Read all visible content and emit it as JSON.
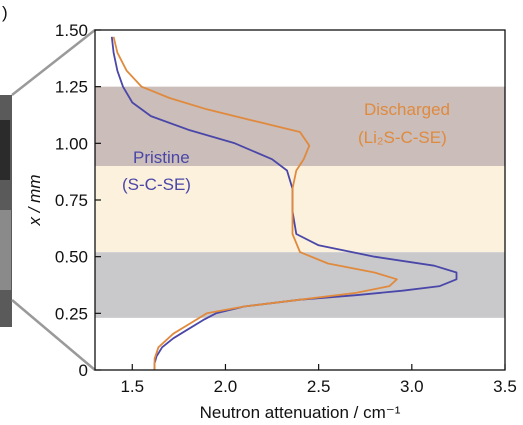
{
  "panel_mark": ")",
  "chart_data": {
    "type": "line",
    "xlabel": "Neutron attenuation / cm⁻¹",
    "ylabel": "x / mm",
    "xlim": [
      1.3,
      3.5
    ],
    "ylim": [
      0,
      1.5
    ],
    "x_ticks": [
      "1.5",
      "2.0",
      "2.5",
      "3.0",
      "3.5"
    ],
    "y_ticks": [
      "0",
      "0.25",
      "0.50",
      "0.75",
      "1.00",
      "1.25",
      "1.50"
    ],
    "regions": [
      {
        "ymin": 0.23,
        "ymax": 0.52,
        "color": "#c9c9cc"
      },
      {
        "ymin": 0.52,
        "ymax": 0.9,
        "color": "#fbf1dc"
      },
      {
        "ymin": 0.9,
        "ymax": 1.25,
        "color": "#cabdba"
      }
    ],
    "series": [
      {
        "name": "Pristine",
        "sublabel": "(S-C-SE)",
        "color": "#4a47a8",
        "points": [
          [
            1.62,
            0.0
          ],
          [
            1.62,
            0.03
          ],
          [
            1.63,
            0.06
          ],
          [
            1.66,
            0.1
          ],
          [
            1.72,
            0.14
          ],
          [
            1.8,
            0.18
          ],
          [
            1.88,
            0.22
          ],
          [
            1.95,
            0.25
          ],
          [
            2.1,
            0.28
          ],
          [
            2.4,
            0.31
          ],
          [
            2.7,
            0.33
          ],
          [
            2.95,
            0.35
          ],
          [
            3.15,
            0.37
          ],
          [
            3.24,
            0.4
          ],
          [
            3.24,
            0.43
          ],
          [
            3.12,
            0.46
          ],
          [
            2.8,
            0.5
          ],
          [
            2.5,
            0.55
          ],
          [
            2.38,
            0.6
          ],
          [
            2.36,
            0.7
          ],
          [
            2.36,
            0.8
          ],
          [
            2.33,
            0.88
          ],
          [
            2.25,
            0.93
          ],
          [
            2.05,
            1.0
          ],
          [
            1.8,
            1.06
          ],
          [
            1.6,
            1.12
          ],
          [
            1.5,
            1.18
          ],
          [
            1.45,
            1.25
          ],
          [
            1.42,
            1.32
          ],
          [
            1.4,
            1.4
          ],
          [
            1.39,
            1.47
          ]
        ]
      },
      {
        "name": "Discharged",
        "sublabel": "(Li₂S-C-SE)",
        "color": "#e08a3e",
        "points": [
          [
            1.62,
            0.0
          ],
          [
            1.62,
            0.05
          ],
          [
            1.64,
            0.1
          ],
          [
            1.72,
            0.16
          ],
          [
            1.82,
            0.21
          ],
          [
            1.9,
            0.25
          ],
          [
            2.1,
            0.28
          ],
          [
            2.4,
            0.31
          ],
          [
            2.7,
            0.34
          ],
          [
            2.88,
            0.37
          ],
          [
            2.92,
            0.4
          ],
          [
            2.8,
            0.43
          ],
          [
            2.55,
            0.47
          ],
          [
            2.4,
            0.52
          ],
          [
            2.36,
            0.6
          ],
          [
            2.36,
            0.7
          ],
          [
            2.36,
            0.8
          ],
          [
            2.38,
            0.88
          ],
          [
            2.42,
            0.93
          ],
          [
            2.45,
            0.99
          ],
          [
            2.4,
            1.05
          ],
          [
            2.15,
            1.1
          ],
          [
            1.9,
            1.15
          ],
          [
            1.7,
            1.2
          ],
          [
            1.55,
            1.25
          ],
          [
            1.47,
            1.32
          ],
          [
            1.42,
            1.4
          ],
          [
            1.4,
            1.47
          ]
        ]
      }
    ]
  }
}
